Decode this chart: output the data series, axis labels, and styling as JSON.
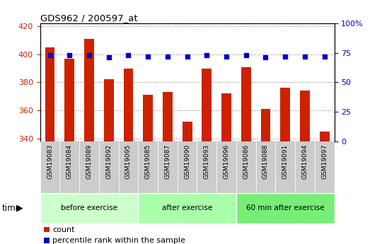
{
  "title": "GDS962 / 200597_at",
  "samples": [
    "GSM19083",
    "GSM19084",
    "GSM19089",
    "GSM19092",
    "GSM19095",
    "GSM19085",
    "GSM19087",
    "GSM19090",
    "GSM19093",
    "GSM19096",
    "GSM19086",
    "GSM19088",
    "GSM19091",
    "GSM19094",
    "GSM19097"
  ],
  "counts": [
    405,
    397,
    411,
    382,
    390,
    371,
    373,
    352,
    390,
    372,
    391,
    361,
    376,
    374,
    345
  ],
  "percentiles": [
    73,
    73,
    73,
    71,
    73,
    72,
    72,
    72,
    73,
    72,
    73,
    71,
    72,
    72,
    72
  ],
  "groups": [
    {
      "label": "before exercise",
      "start": 0,
      "end": 5,
      "color": "#ccffcc"
    },
    {
      "label": "after exercise",
      "start": 5,
      "end": 10,
      "color": "#aaffaa"
    },
    {
      "label": "60 min after exercise",
      "start": 10,
      "end": 15,
      "color": "#77ee77"
    }
  ],
  "ylim_left": [
    338,
    422
  ],
  "ylim_right": [
    0,
    100
  ],
  "yticks_left": [
    340,
    360,
    380,
    400,
    420
  ],
  "yticks_right": [
    0,
    25,
    50,
    75,
    100
  ],
  "yticklabels_right": [
    "0",
    "25",
    "50",
    "75",
    "100%"
  ],
  "bar_color": "#cc2200",
  "dot_color": "#0000cc",
  "bar_width": 0.5,
  "bar_bottom": 338,
  "grid_color": "#888888",
  "tick_label_bg": "#cccccc",
  "time_label": "time",
  "legend_count_label": "count",
  "legend_pct_label": "percentile rank within the sample"
}
